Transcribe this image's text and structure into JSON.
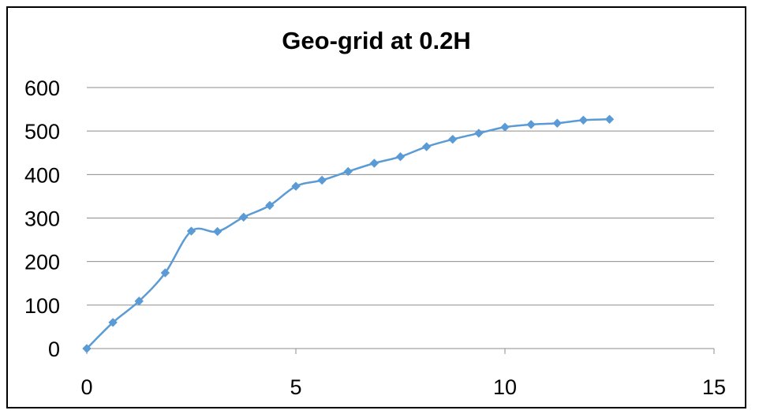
{
  "chart_data": {
    "type": "line",
    "title": "Geo-grid at 0.2H",
    "xlabel": "",
    "ylabel": "",
    "xlim": [
      0,
      15
    ],
    "ylim": [
      0,
      600
    ],
    "x_ticks": [
      0,
      5,
      10,
      15
    ],
    "y_ticks": [
      0,
      100,
      200,
      300,
      400,
      500,
      600
    ],
    "grid": "horizontal",
    "legend": "none",
    "smooth": true,
    "series": [
      {
        "color": "#5b9bd5",
        "marker": "diamond",
        "x": [
          0,
          0.625,
          1.25,
          1.875,
          2.5,
          3.125,
          3.75,
          4.375,
          5.0,
          5.625,
          6.25,
          6.875,
          7.5,
          8.125,
          8.75,
          9.375,
          10.0,
          10.625,
          11.25,
          11.875,
          12.5
        ],
        "y": [
          0,
          60,
          109,
          174,
          270,
          269,
          302,
          329,
          373,
          387,
          407,
          426,
          441,
          464,
          481,
          495,
          509,
          515,
          518,
          525,
          527
        ]
      }
    ]
  }
}
